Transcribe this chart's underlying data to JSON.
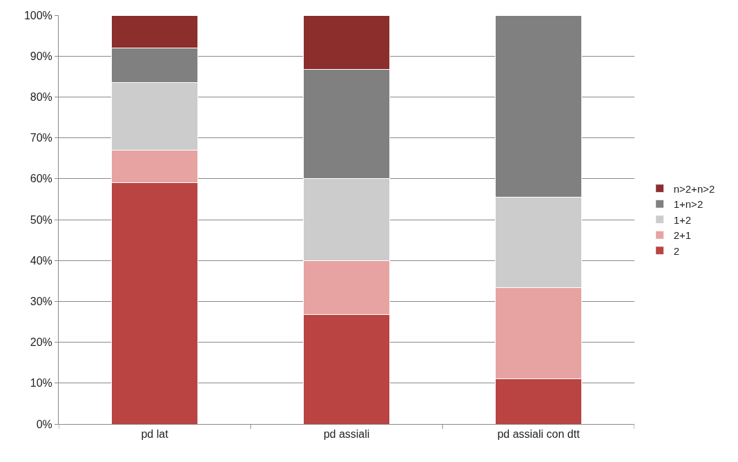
{
  "chart_data": {
    "type": "bar",
    "stacked": true,
    "categories": [
      "pd lat",
      "pd assiali",
      "pd assiali con dtt"
    ],
    "series": [
      {
        "name": "2",
        "color": "#b94441",
        "values": [
          59,
          26.7,
          11.1
        ]
      },
      {
        "name": "2+1",
        "color": "#e6a3a2",
        "values": [
          8,
          13.3,
          22.2
        ]
      },
      {
        "name": "1+2",
        "color": "#cccccc",
        "values": [
          16.5,
          20,
          22.2
        ]
      },
      {
        "name": "1+n>2",
        "color": "#808080",
        "values": [
          8.5,
          26.7,
          44.5
        ]
      },
      {
        "name": "n>2+n>2",
        "color": "#8b2e2c",
        "values": [
          8,
          13.3,
          null
        ]
      }
    ],
    "ylim": [
      0,
      100
    ],
    "yticks": [
      {
        "value": 0,
        "label": "0%"
      },
      {
        "value": 10,
        "label": "10%"
      },
      {
        "value": 20,
        "label": "20%"
      },
      {
        "value": 30,
        "label": "30%"
      },
      {
        "value": 40,
        "label": "40%"
      },
      {
        "value": 50,
        "label": "50%"
      },
      {
        "value": 60,
        "label": "60%"
      },
      {
        "value": 70,
        "label": "70%"
      },
      {
        "value": 80,
        "label": "80%"
      },
      {
        "value": 90,
        "label": "90%"
      },
      {
        "value": 100,
        "label": "100%"
      }
    ],
    "grid": "y",
    "legend": "right"
  }
}
